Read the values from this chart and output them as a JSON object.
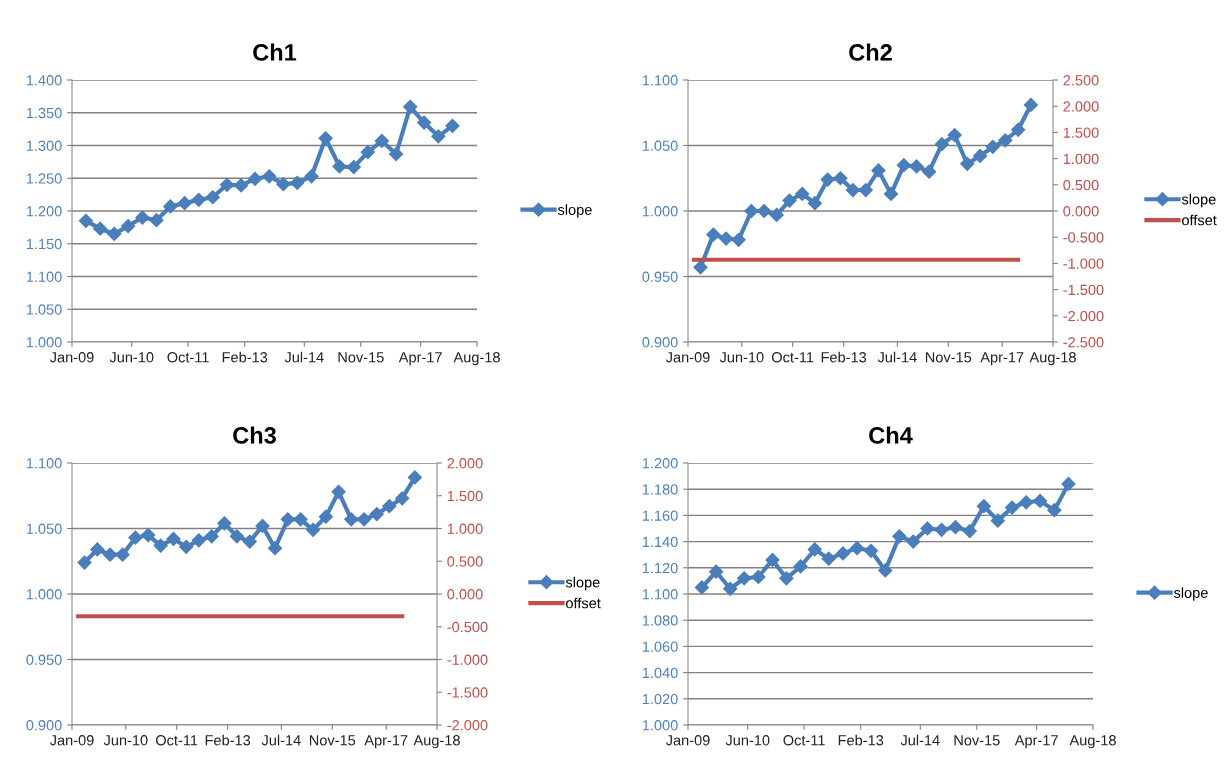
{
  "chart_data": [
    {
      "type": "line",
      "title": "Ch1",
      "legend": "right",
      "grid": "y",
      "marker": "diamond",
      "line_style": "solid",
      "x": [
        "2009-05",
        "2009-09",
        "2010-01",
        "2010-05",
        "2010-09",
        "2011-01",
        "2011-05",
        "2011-09",
        "2012-01",
        "2012-05",
        "2012-09",
        "2013-01",
        "2013-05",
        "2013-09",
        "2014-01",
        "2014-05",
        "2014-09",
        "2015-01",
        "2015-05",
        "2015-09",
        "2016-01",
        "2016-05",
        "2016-09",
        "2017-01",
        "2017-05",
        "2017-09",
        "2018-01"
      ],
      "xlim": [
        "2009-01-01",
        "2018-08-01"
      ],
      "xticks": [
        {
          "value": "2009-01-01",
          "label": "Jan-09"
        },
        {
          "value": "2010-06-01",
          "label": "Jun-10"
        },
        {
          "value": "2011-10-01",
          "label": "Oct-11"
        },
        {
          "value": "2013-02-01",
          "label": "Feb-13"
        },
        {
          "value": "2014-07-01",
          "label": "Jul-14"
        },
        {
          "value": "2015-11-01",
          "label": "Nov-15"
        },
        {
          "value": "2017-04-01",
          "label": "Apr-17"
        },
        {
          "value": "2018-08-01",
          "label": "Aug-18"
        }
      ],
      "ylim": [
        1.0,
        1.4
      ],
      "yticks": [
        {
          "value": 1.0,
          "label": "1.000"
        },
        {
          "value": 1.05,
          "label": "1.050"
        },
        {
          "value": 1.1,
          "label": "1.100"
        },
        {
          "value": 1.15,
          "label": "1.150"
        },
        {
          "value": 1.2,
          "label": "1.200"
        },
        {
          "value": 1.25,
          "label": "1.250"
        },
        {
          "value": 1.3,
          "label": "1.300"
        },
        {
          "value": 1.35,
          "label": "1.350"
        },
        {
          "value": 1.4,
          "label": "1.400"
        }
      ],
      "series": [
        {
          "name": "slope",
          "color": "#4a7ebb",
          "values": [
            1.185,
            1.173,
            1.165,
            1.177,
            1.19,
            1.186,
            1.207,
            1.212,
            1.217,
            1.221,
            1.24,
            1.239,
            1.249,
            1.253,
            1.241,
            1.243,
            1.253,
            1.311,
            1.268,
            1.267,
            1.29,
            1.307,
            1.287,
            1.359,
            1.335,
            1.314,
            1.33
          ]
        }
      ]
    },
    {
      "type": "line",
      "title": "Ch2",
      "legend": "right",
      "grid": "y",
      "marker": "diamond",
      "line_style": "solid",
      "x": [
        "2009-05",
        "2009-09",
        "2010-01",
        "2010-05",
        "2010-09",
        "2011-01",
        "2011-05",
        "2011-09",
        "2012-01",
        "2012-05",
        "2012-09",
        "2013-01",
        "2013-05",
        "2013-09",
        "2014-01",
        "2014-05",
        "2014-09",
        "2015-01",
        "2015-05",
        "2015-09",
        "2016-01",
        "2016-05",
        "2016-09",
        "2017-01",
        "2017-05",
        "2017-09",
        "2018-01"
      ],
      "xlim": [
        "2009-01-01",
        "2018-08-01"
      ],
      "xticks": [
        {
          "value": "2009-01-01",
          "label": "Jan-09"
        },
        {
          "value": "2010-06-01",
          "label": "Jun-10"
        },
        {
          "value": "2011-10-01",
          "label": "Oct-11"
        },
        {
          "value": "2013-02-01",
          "label": "Feb-13"
        },
        {
          "value": "2014-07-01",
          "label": "Jul-14"
        },
        {
          "value": "2015-11-01",
          "label": "Nov-15"
        },
        {
          "value": "2017-04-01",
          "label": "Apr-17"
        },
        {
          "value": "2018-08-01",
          "label": "Aug-18"
        }
      ],
      "ylim": [
        0.9,
        1.1
      ],
      "yticks": [
        {
          "value": 0.9,
          "label": "0.900"
        },
        {
          "value": 0.95,
          "label": "0.950"
        },
        {
          "value": 1.0,
          "label": "1.000"
        },
        {
          "value": 1.05,
          "label": "1.050"
        },
        {
          "value": 1.1,
          "label": "1.100"
        }
      ],
      "y2lim": [
        -2.5,
        2.5
      ],
      "y2ticks": [
        {
          "value": -2.5,
          "label": "-2.500"
        },
        {
          "value": -2.0,
          "label": "-2.000"
        },
        {
          "value": -1.5,
          "label": "-1.500"
        },
        {
          "value": -1.0,
          "label": "-1.000"
        },
        {
          "value": -0.5,
          "label": "-0.500"
        },
        {
          "value": 0.0,
          "label": "0.000"
        },
        {
          "value": 0.5,
          "label": "0.500"
        },
        {
          "value": 1.0,
          "label": "1.000"
        },
        {
          "value": 1.5,
          "label": "1.500"
        },
        {
          "value": 2.0,
          "label": "2.000"
        },
        {
          "value": 2.5,
          "label": "2.500"
        }
      ],
      "series": [
        {
          "name": "slope",
          "color": "#4a7ebb",
          "values": [
            0.957,
            0.982,
            0.979,
            0.978,
            1.0,
            1.0,
            0.997,
            1.008,
            1.013,
            1.006,
            1.024,
            1.025,
            1.016,
            1.016,
            1.031,
            1.013,
            1.035,
            1.034,
            1.03,
            1.051,
            1.058,
            1.036,
            1.042,
            1.049,
            1.054,
            1.062,
            1.081
          ]
        },
        {
          "name": "offset",
          "color": "#c0504d",
          "axis": "y2",
          "marker": "none",
          "x": [
            "2009-03",
            "2017-09"
          ],
          "values": [
            -0.93,
            -0.93
          ]
        }
      ]
    },
    {
      "type": "line",
      "title": "Ch3",
      "legend": "right",
      "grid": "y",
      "marker": "diamond",
      "line_style": "solid",
      "x": [
        "2009-05",
        "2009-09",
        "2010-01",
        "2010-05",
        "2010-09",
        "2011-01",
        "2011-05",
        "2011-09",
        "2012-01",
        "2012-05",
        "2012-09",
        "2013-01",
        "2013-05",
        "2013-09",
        "2014-01",
        "2014-05",
        "2014-09",
        "2015-01",
        "2015-05",
        "2015-09",
        "2016-01",
        "2016-05",
        "2016-09",
        "2017-01",
        "2017-05",
        "2017-09",
        "2018-01"
      ],
      "xlim": [
        "2009-01-01",
        "2018-08-01"
      ],
      "xticks": [
        {
          "value": "2009-01-01",
          "label": "Jan-09"
        },
        {
          "value": "2010-06-01",
          "label": "Jun-10"
        },
        {
          "value": "2011-10-01",
          "label": "Oct-11"
        },
        {
          "value": "2013-02-01",
          "label": "Feb-13"
        },
        {
          "value": "2014-07-01",
          "label": "Jul-14"
        },
        {
          "value": "2015-11-01",
          "label": "Nov-15"
        },
        {
          "value": "2017-04-01",
          "label": "Apr-17"
        },
        {
          "value": "2018-08-01",
          "label": "Aug-18"
        }
      ],
      "ylim": [
        0.9,
        1.1
      ],
      "yticks": [
        {
          "value": 0.9,
          "label": "0.900"
        },
        {
          "value": 0.95,
          "label": "0.950"
        },
        {
          "value": 1.0,
          "label": "1.000"
        },
        {
          "value": 1.05,
          "label": "1.050"
        },
        {
          "value": 1.1,
          "label": "1.100"
        }
      ],
      "y2lim": [
        -2.0,
        2.0
      ],
      "y2ticks": [
        {
          "value": -2.0,
          "label": "-2.000"
        },
        {
          "value": -1.5,
          "label": "-1.500"
        },
        {
          "value": -1.0,
          "label": "-1.000"
        },
        {
          "value": -0.5,
          "label": "-0.500"
        },
        {
          "value": 0.0,
          "label": "0.000"
        },
        {
          "value": 0.5,
          "label": "0.500"
        },
        {
          "value": 1.0,
          "label": "1.000"
        },
        {
          "value": 1.5,
          "label": "1.500"
        },
        {
          "value": 2.0,
          "label": "2.000"
        }
      ],
      "series": [
        {
          "name": "slope",
          "color": "#4a7ebb",
          "values": [
            1.024,
            1.034,
            1.03,
            1.03,
            1.043,
            1.045,
            1.037,
            1.042,
            1.036,
            1.041,
            1.044,
            1.054,
            1.044,
            1.04,
            1.052,
            1.035,
            1.057,
            1.057,
            1.049,
            1.059,
            1.078,
            1.057,
            1.057,
            1.061,
            1.067,
            1.073,
            1.089
          ]
        },
        {
          "name": "offset",
          "color": "#c0504d",
          "axis": "y2",
          "marker": "none",
          "x": [
            "2009-03",
            "2017-09"
          ],
          "values": [
            -0.34,
            -0.34
          ]
        }
      ]
    },
    {
      "type": "line",
      "title": "Ch4",
      "legend": "right",
      "grid": "y",
      "marker": "diamond",
      "line_style": "solid",
      "x": [
        "2009-05",
        "2009-09",
        "2010-01",
        "2010-05",
        "2010-09",
        "2011-01",
        "2011-05",
        "2011-09",
        "2012-01",
        "2012-05",
        "2012-09",
        "2013-01",
        "2013-05",
        "2013-09",
        "2014-01",
        "2014-05",
        "2014-09",
        "2015-01",
        "2015-05",
        "2015-09",
        "2016-01",
        "2016-05",
        "2016-09",
        "2017-01",
        "2017-05",
        "2017-09",
        "2018-01"
      ],
      "xlim": [
        "2009-01-01",
        "2018-08-01"
      ],
      "xticks": [
        {
          "value": "2009-01-01",
          "label": "Jan-09"
        },
        {
          "value": "2010-06-01",
          "label": "Jun-10"
        },
        {
          "value": "2011-10-01",
          "label": "Oct-11"
        },
        {
          "value": "2013-02-01",
          "label": "Feb-13"
        },
        {
          "value": "2014-07-01",
          "label": "Jul-14"
        },
        {
          "value": "2015-11-01",
          "label": "Nov-15"
        },
        {
          "value": "2017-04-01",
          "label": "Apr-17"
        },
        {
          "value": "2018-08-01",
          "label": "Aug-18"
        }
      ],
      "ylim": [
        1.0,
        1.2
      ],
      "yticks": [
        {
          "value": 1.0,
          "label": "1.000"
        },
        {
          "value": 1.02,
          "label": "1.020"
        },
        {
          "value": 1.04,
          "label": "1.040"
        },
        {
          "value": 1.06,
          "label": "1.060"
        },
        {
          "value": 1.08,
          "label": "1.080"
        },
        {
          "value": 1.1,
          "label": "1.100"
        },
        {
          "value": 1.12,
          "label": "1.120"
        },
        {
          "value": 1.14,
          "label": "1.140"
        },
        {
          "value": 1.16,
          "label": "1.160"
        },
        {
          "value": 1.18,
          "label": "1.180"
        },
        {
          "value": 1.2,
          "label": "1.200"
        }
      ],
      "series": [
        {
          "name": "slope",
          "color": "#4a7ebb",
          "values": [
            1.105,
            1.117,
            1.104,
            1.112,
            1.113,
            1.126,
            1.112,
            1.121,
            1.134,
            1.127,
            1.131,
            1.135,
            1.133,
            1.118,
            1.144,
            1.14,
            1.15,
            1.149,
            1.151,
            1.148,
            1.167,
            1.156,
            1.166,
            1.17,
            1.171,
            1.164,
            1.184
          ]
        }
      ]
    }
  ]
}
